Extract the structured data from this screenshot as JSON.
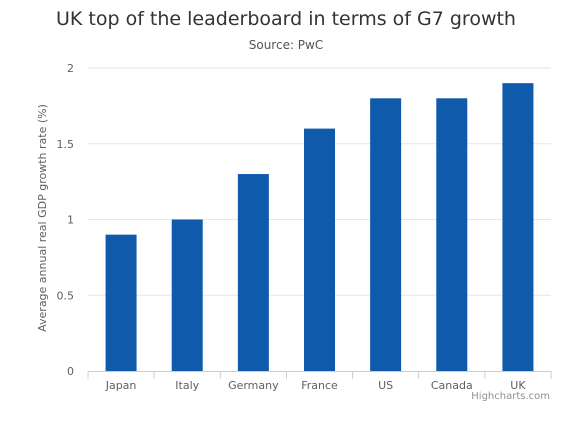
{
  "chart_data": {
    "type": "bar",
    "title": "UK top of the leaderboard in terms of G7 growth",
    "subtitle": "Source: PwC",
    "categories": [
      "Japan",
      "Italy",
      "Germany",
      "France",
      "US",
      "Canada",
      "UK"
    ],
    "values": [
      0.9,
      1.0,
      1.3,
      1.6,
      1.8,
      1.8,
      1.9
    ],
    "ylabel": "Average annual real GDP growth rate (%)",
    "xlabel": "",
    "ylim": [
      0,
      2
    ],
    "yticks": [
      "0",
      "0.5",
      "1",
      "1.5",
      "2"
    ],
    "bar_color": "#0F5AAB",
    "grid": true,
    "credits": "Highcharts.com"
  }
}
